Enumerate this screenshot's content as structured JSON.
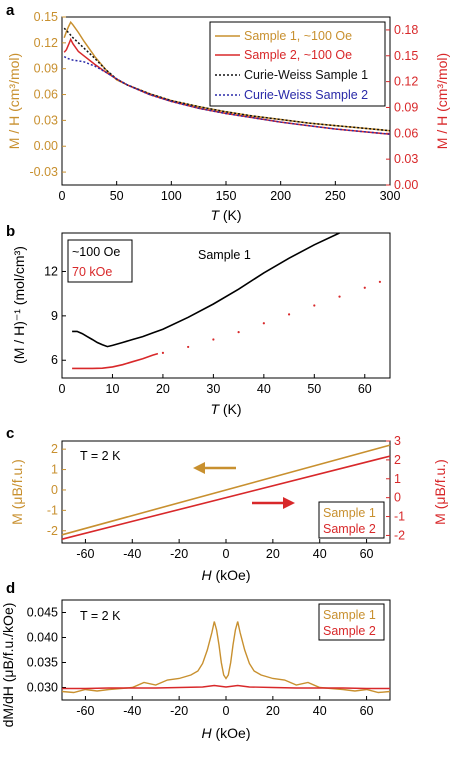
{
  "colors": {
    "sample1": "#c8902f",
    "sample2": "#d8282a",
    "cw1": "#111111",
    "cw2": "#2a2aa8",
    "black": "#000000"
  },
  "panels": {
    "a": "a",
    "b": "b",
    "c": "c",
    "d": "d"
  },
  "chart_data": [
    {
      "id": "a",
      "type": "line",
      "xlabel_italic": "T",
      "xlabel_rest": " (K)",
      "ylabel_left": "M / H (cm³/mol)",
      "ylabel_right": "M / H (cm³/mol)",
      "xlim": [
        0,
        300
      ],
      "ylim_left": [
        -0.045,
        0.15
      ],
      "ylim_right": [
        0,
        0.195
      ],
      "xticks": [
        0,
        50,
        100,
        150,
        200,
        250,
        300
      ],
      "yticks_left": [
        "-0.03",
        "0.00",
        "0.03",
        "0.06",
        "0.09",
        "0.12",
        "0.15"
      ],
      "yticks_left_vals": [
        -0.03,
        0,
        0.03,
        0.06,
        0.09,
        0.12,
        0.15
      ],
      "yticks_right": [
        "0.00",
        "0.03",
        "0.06",
        "0.09",
        "0.12",
        "0.15",
        "0.18"
      ],
      "yticks_right_vals": [
        0,
        0.03,
        0.06,
        0.09,
        0.12,
        0.15,
        0.18
      ],
      "legend": [
        "Sample 1, ~100 Oe",
        "Sample 2, ~100 Oe",
        "Curie-Weiss Sample 1",
        "Curie-Weiss Sample 2"
      ],
      "series": [
        {
          "name": "Sample 1, ~100 Oe",
          "x": [
            2,
            4,
            6,
            8,
            10,
            15,
            20,
            30,
            40,
            50,
            60,
            80,
            100,
            125,
            150,
            175,
            200,
            225,
            250,
            275,
            300
          ],
          "y": [
            0.126,
            0.133,
            0.139,
            0.144,
            0.141,
            0.132,
            0.122,
            0.104,
            0.089,
            0.077,
            0.071,
            0.061,
            0.053,
            0.046,
            0.04,
            0.035,
            0.031,
            0.027,
            0.024,
            0.021,
            0.018
          ]
        },
        {
          "name": "Sample 2, ~100 Oe",
          "x": [
            2,
            4,
            6,
            8,
            10,
            15,
            20,
            30,
            40,
            50,
            60,
            80,
            100,
            125,
            150,
            175,
            200,
            225,
            250,
            275,
            300
          ],
          "y": [
            0.109,
            0.112,
            0.118,
            0.124,
            0.119,
            0.11,
            0.105,
            0.095,
            0.086,
            0.078,
            0.071,
            0.06,
            0.052,
            0.044,
            0.038,
            0.033,
            0.028,
            0.024,
            0.02,
            0.017,
            0.014
          ]
        },
        {
          "name": "Curie-Weiss Sample 1",
          "x": [
            2,
            5,
            10,
            15,
            20,
            30,
            40,
            50,
            60,
            80,
            100,
            125,
            150,
            175,
            200,
            225,
            250,
            275,
            300
          ],
          "y": [
            0.137,
            0.133,
            0.126,
            0.12,
            0.114,
            0.102,
            0.089,
            0.078,
            0.071,
            0.061,
            0.053,
            0.046,
            0.04,
            0.035,
            0.031,
            0.027,
            0.024,
            0.021,
            0.018
          ]
        },
        {
          "name": "Curie-Weiss Sample 2",
          "x": [
            2,
            5,
            10,
            15,
            20,
            30,
            40,
            50,
            60,
            80,
            100,
            125,
            150,
            175,
            200,
            225,
            250,
            275,
            300
          ],
          "y": [
            0.104,
            0.102,
            0.1,
            0.099,
            0.098,
            0.093,
            0.086,
            0.078,
            0.071,
            0.06,
            0.052,
            0.044,
            0.038,
            0.033,
            0.028,
            0.024,
            0.02,
            0.017,
            0.014
          ]
        }
      ]
    },
    {
      "id": "b",
      "type": "scatter",
      "xlabel_italic": "T",
      "xlabel_rest": " (K)",
      "ylabel": "(M / H)⁻¹ (mol/cm³)",
      "xlim": [
        0,
        65
      ],
      "ylim": [
        4.8,
        14.6
      ],
      "xticks": [
        0,
        10,
        20,
        30,
        40,
        50,
        60
      ],
      "yticks": [
        6,
        9,
        12
      ],
      "annotation": "Sample 1",
      "legend": [
        "~100 Oe",
        "70 kOe"
      ],
      "series": [
        {
          "name": "~100 Oe",
          "x": [
            2,
            3,
            4,
            5,
            6,
            7,
            8,
            9,
            10,
            12,
            14,
            16,
            18,
            20,
            25,
            30,
            35,
            40,
            45,
            50,
            55
          ],
          "y": [
            7.95,
            7.95,
            7.8,
            7.6,
            7.4,
            7.2,
            7.05,
            6.92,
            7.0,
            7.2,
            7.4,
            7.6,
            7.85,
            8.1,
            8.9,
            9.8,
            10.8,
            11.9,
            12.9,
            13.8,
            14.6
          ]
        },
        {
          "name": "70 kOe",
          "x": [
            2,
            4,
            6,
            8,
            9,
            10,
            12,
            14,
            16,
            18,
            19,
            20,
            25,
            30,
            35,
            40,
            45,
            50,
            55,
            60,
            63
          ],
          "y": [
            5.45,
            5.45,
            5.45,
            5.46,
            5.5,
            5.55,
            5.7,
            5.9,
            6.1,
            6.35,
            6.45,
            6.5,
            6.9,
            7.4,
            7.9,
            8.5,
            9.1,
            9.7,
            10.3,
            10.9,
            11.3
          ]
        }
      ]
    },
    {
      "id": "c",
      "type": "line",
      "xlabel_italic": "H",
      "xlabel_rest": " (kOe)",
      "ylabel_left": "M (μB/f.u.)",
      "ylabel_right": "M (μB/f.u.)",
      "annotation": "T = 2 K",
      "xlim": [
        -70,
        70
      ],
      "ylim_left": [
        -2.6,
        2.4
      ],
      "ylim_right": [
        -2.4,
        3.0
      ],
      "xticks": [
        -60,
        -40,
        -20,
        0,
        20,
        40,
        60
      ],
      "yticks_left": [
        -2,
        -1,
        0,
        1,
        2
      ],
      "yticks_right": [
        -2,
        -1,
        0,
        1,
        2,
        3
      ],
      "legend": [
        "Sample 1",
        "Sample 2"
      ],
      "series": [
        {
          "name": "Sample 1",
          "x": [
            -70,
            70
          ],
          "y": [
            -2.2,
            2.2
          ]
        },
        {
          "name": "Sample 2",
          "x": [
            -70,
            70
          ],
          "y": [
            -2.2,
            2.2
          ]
        }
      ]
    },
    {
      "id": "d",
      "type": "line",
      "xlabel_italic": "H",
      "xlabel_rest": " (kOe)",
      "ylabel": "dM/dH (μB/f.u./kOe)",
      "annotation": "T = 2 K",
      "xlim": [
        -70,
        70
      ],
      "ylim": [
        0.0275,
        0.0475
      ],
      "xticks": [
        -60,
        -40,
        -20,
        0,
        20,
        40,
        60
      ],
      "yticks": [
        "0.030",
        "0.035",
        "0.040",
        "0.045"
      ],
      "yticks_vals": [
        0.03,
        0.035,
        0.04,
        0.045
      ],
      "legend": [
        "Sample 1",
        "Sample 2"
      ],
      "series": [
        {
          "name": "Sample 1",
          "x": [
            -70,
            -65,
            -60,
            -55,
            -50,
            -45,
            -40,
            -35,
            -30,
            -25,
            -20,
            -15,
            -12,
            -10,
            -8,
            -6,
            -5,
            -4,
            -3,
            -2,
            -1,
            0,
            1,
            2,
            3,
            4,
            5,
            6,
            8,
            10,
            12,
            15,
            20,
            25,
            30,
            35,
            40,
            45,
            50,
            55,
            60,
            65,
            70
          ],
          "y": [
            0.0292,
            0.029,
            0.0296,
            0.0293,
            0.0296,
            0.0298,
            0.03,
            0.031,
            0.0305,
            0.0315,
            0.0318,
            0.0325,
            0.0333,
            0.0348,
            0.0375,
            0.041,
            0.0432,
            0.0415,
            0.0385,
            0.035,
            0.0325,
            0.0318,
            0.0325,
            0.035,
            0.0385,
            0.0415,
            0.0432,
            0.041,
            0.0375,
            0.0348,
            0.0333,
            0.0325,
            0.0318,
            0.0315,
            0.0305,
            0.031,
            0.03,
            0.0298,
            0.0296,
            0.0293,
            0.0296,
            0.029,
            0.0292
          ]
        },
        {
          "name": "Sample 2",
          "x": [
            -70,
            -60,
            -50,
            -40,
            -30,
            -20,
            -10,
            -5,
            0,
            5,
            10,
            20,
            30,
            40,
            50,
            60,
            70
          ],
          "y": [
            0.0298,
            0.0298,
            0.0299,
            0.0299,
            0.0299,
            0.03,
            0.0301,
            0.0304,
            0.0301,
            0.0304,
            0.0301,
            0.03,
            0.0299,
            0.0299,
            0.0299,
            0.0298,
            0.0298
          ]
        }
      ]
    }
  ]
}
